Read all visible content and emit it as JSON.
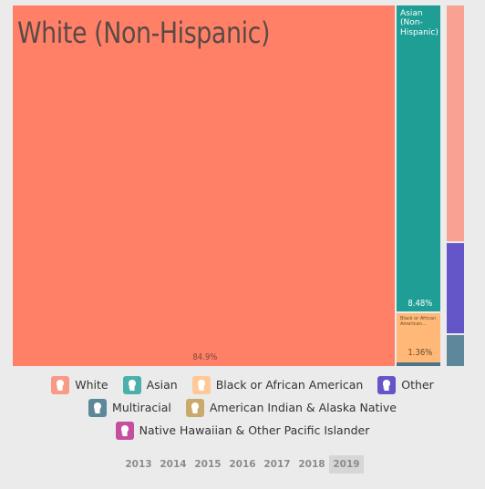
{
  "chart_data": {
    "type": "treemap",
    "year": "2019",
    "tiles": [
      {
        "key": "white",
        "label": "White (Non-Hispanic)",
        "value": 84.9,
        "value_text": "84.9%",
        "color": "#ff8066"
      },
      {
        "key": "asian",
        "label": "Asian (Non-Hispanic)",
        "value": 8.48,
        "value_text": "8.48%",
        "color": "#1f9e96"
      },
      {
        "key": "black",
        "label": "Black or African American...",
        "value": 1.36,
        "value_text": "1.36%",
        "color": "#ffb877"
      },
      {
        "key": "white-hispanic",
        "label": "",
        "value": 3.2,
        "value_text": "",
        "color": "#f9a292"
      },
      {
        "key": "other",
        "label": "",
        "value": 1.8,
        "value_text": "",
        "color": "#6456c8"
      },
      {
        "key": "multiracial",
        "label": "",
        "value": 0.65,
        "value_text": "",
        "color": "#5d889c"
      },
      {
        "key": "other-small",
        "label": "",
        "value": 0.05,
        "value_text": "",
        "color": "#4a7488"
      }
    ]
  },
  "legend": [
    [
      {
        "label": "White",
        "color": "#f79a86",
        "icon": "person-silhouette-icon"
      },
      {
        "label": "Asian",
        "color": "#4cb0aa",
        "icon": "person-silhouette-icon"
      },
      {
        "label": "Black or African American",
        "color": "#ffc896",
        "icon": "person-silhouette-icon"
      },
      {
        "label": "Other",
        "color": "#6456c8",
        "icon": "person-silhouette-icon"
      }
    ],
    [
      {
        "label": "Multiracial",
        "color": "#5d889c",
        "icon": "person-silhouette-icon"
      },
      {
        "label": "American Indian & Alaska Native",
        "color": "#c9a96c",
        "icon": "person-silhouette-icon"
      }
    ],
    [
      {
        "label": "Native Hawaiian & Other Pacific Islander",
        "color": "#c64e9e",
        "icon": "person-silhouette-icon"
      }
    ]
  ],
  "years": [
    "2013",
    "2014",
    "2015",
    "2016",
    "2017",
    "2018",
    "2019"
  ],
  "selected_year": "2019"
}
